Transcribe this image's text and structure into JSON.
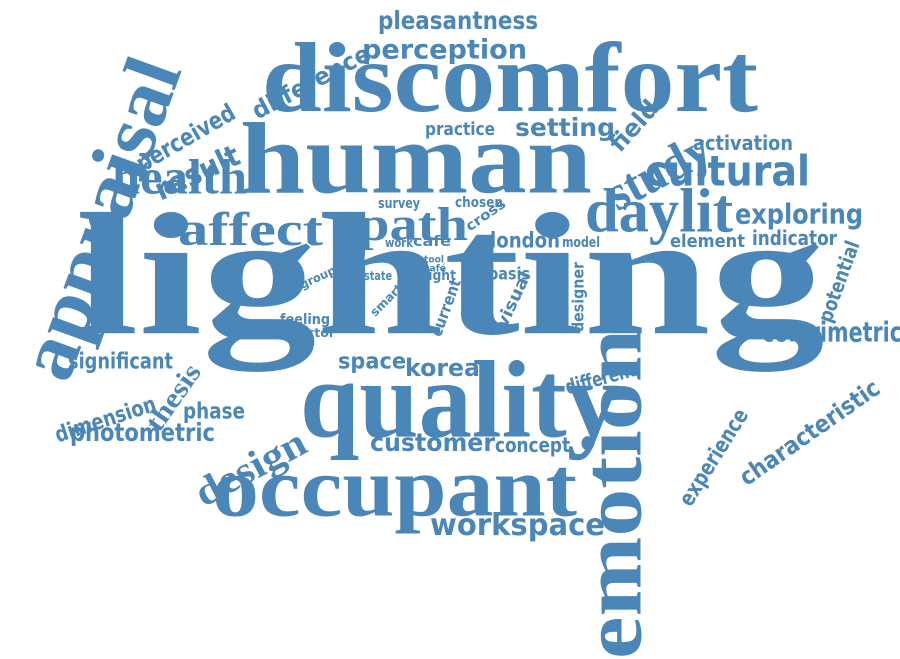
{
  "color": "#4a86b8",
  "words": [
    "lighting",
    "human",
    "discomfort",
    "quality",
    "emotion",
    "appraisal",
    "occupant",
    "daylit",
    "affect",
    "health",
    "study",
    "cultural",
    "path",
    "pleasantness",
    "perception",
    "difference",
    "perceived",
    "result",
    "setting",
    "field",
    "activation",
    "practice",
    "exploring",
    "element",
    "indicator",
    "colorimetric",
    "potential",
    "characteristic",
    "experience",
    "workspace",
    "customer",
    "concept",
    "design",
    "phase",
    "photometric",
    "dimension",
    "thesis",
    "significant",
    "space",
    "korea",
    "different",
    "designer",
    "visual",
    "current",
    "basis",
    "london",
    "model",
    "cafe",
    "work",
    "survey",
    "chosen",
    "cross",
    "tool",
    "café",
    "light",
    "state",
    "smart",
    "group",
    "feeling",
    "factor"
  ]
}
